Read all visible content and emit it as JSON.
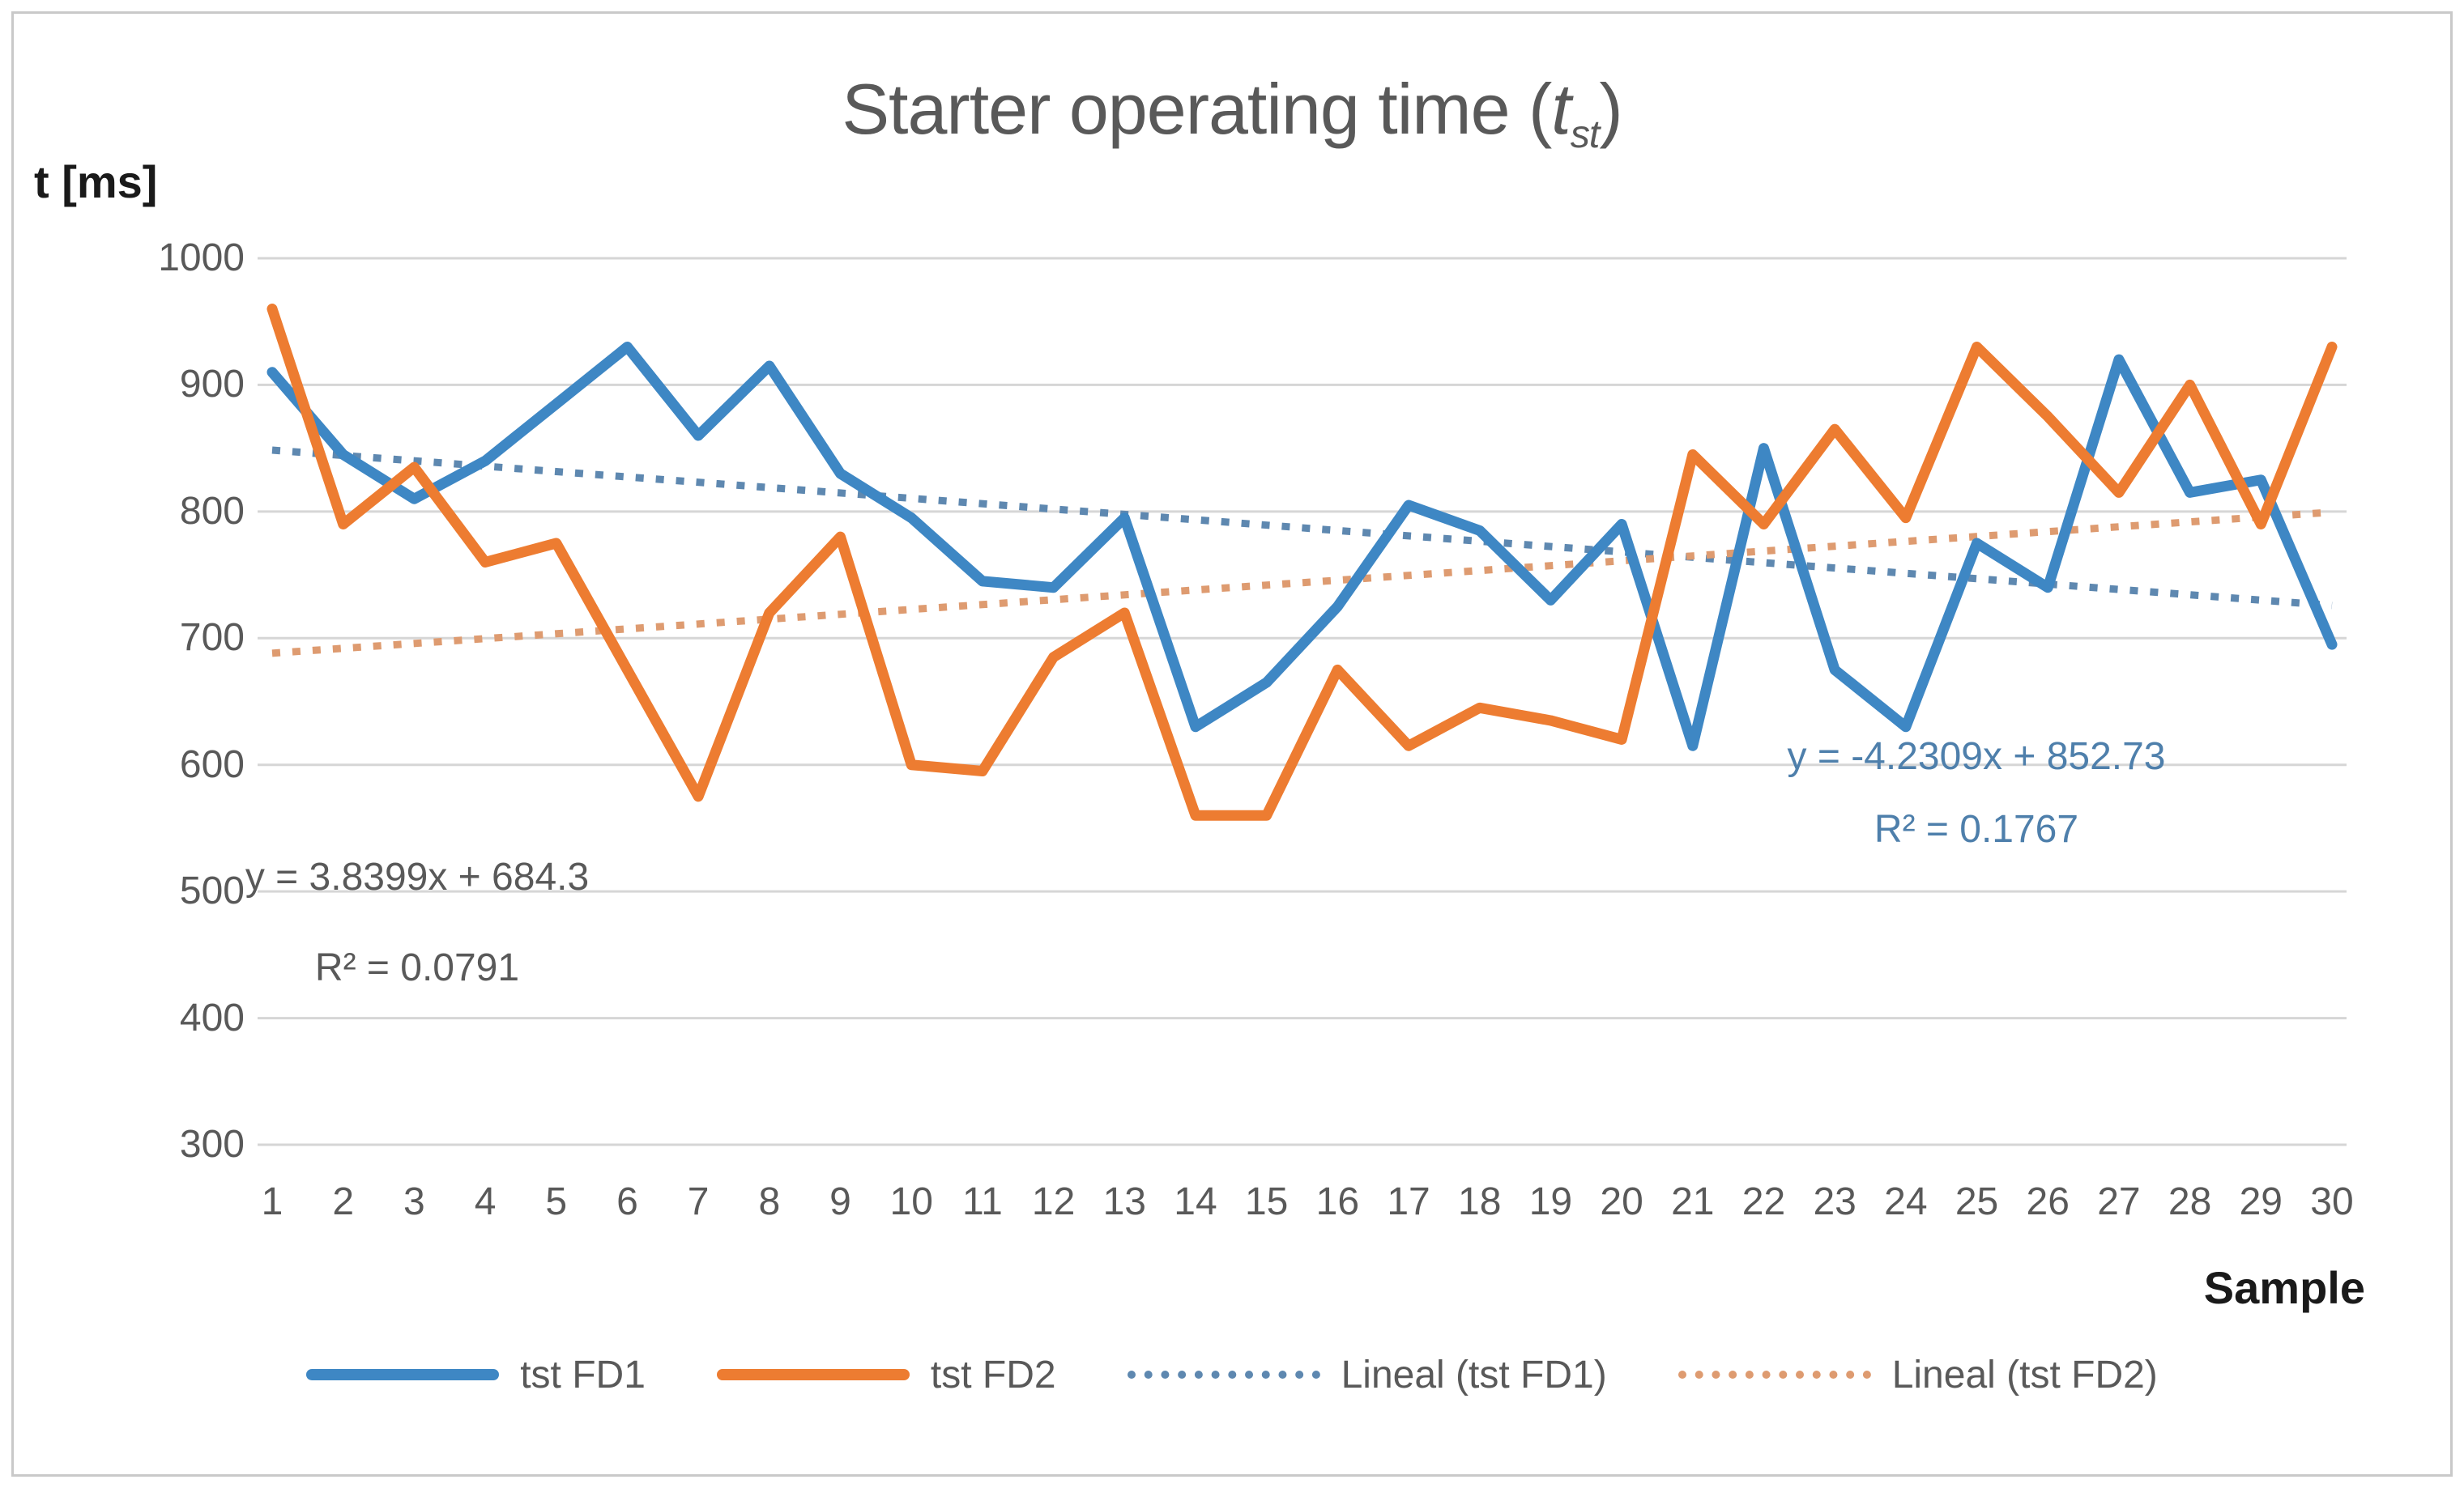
{
  "chart_data": {
    "type": "line",
    "title": {
      "prefix": "Starter operating time (",
      "variable": "t",
      "subscript": "st",
      "suffix": ")"
    },
    "y_axis": {
      "title": "t [ms]",
      "min": 300,
      "max": 1000,
      "ticks": [
        1000,
        900,
        800,
        700,
        600,
        500,
        400,
        300
      ]
    },
    "x_axis": {
      "title": "Sample",
      "ticks": [
        1,
        2,
        3,
        4,
        5,
        6,
        7,
        8,
        9,
        10,
        11,
        12,
        13,
        14,
        15,
        16,
        17,
        18,
        19,
        20,
        21,
        22,
        23,
        24,
        25,
        26,
        27,
        28,
        29,
        30
      ]
    },
    "series": [
      {
        "name": "tst FD1",
        "color": "#3E87C4",
        "values": [
          910,
          845,
          810,
          840,
          885,
          930,
          860,
          915,
          830,
          795,
          745,
          740,
          795,
          630,
          665,
          725,
          805,
          785,
          730,
          790,
          615,
          850,
          675,
          630,
          775,
          740,
          920,
          815,
          825,
          695
        ]
      },
      {
        "name": "tst FD2",
        "color": "#ED7C31",
        "values": [
          960,
          790,
          835,
          760,
          775,
          675,
          575,
          720,
          780,
          600,
          595,
          685,
          720,
          560,
          560,
          675,
          615,
          645,
          635,
          620,
          845,
          790,
          865,
          795,
          930,
          875,
          815,
          900,
          790,
          930
        ]
      }
    ],
    "trendlines": [
      {
        "name": "Lineal (tst FD1)",
        "color": "#5E88B0",
        "slope": -4.2309,
        "intercept": 852.73,
        "equation": "y = -4.2309x + 852.73",
        "r2": "R² = 0.1767",
        "equation_color": "#4E7FAB"
      },
      {
        "name": "Lineal (tst FD2)",
        "color": "#DE9B70",
        "slope": 3.8399,
        "intercept": 684.3,
        "equation": "y = 3.8399x + 684.3",
        "r2": "R² = 0.0791",
        "equation_color": "#595959"
      }
    ],
    "legend": [
      {
        "label": "tst FD1",
        "color": "#3E87C4",
        "dashed": false
      },
      {
        "label": "tst FD2",
        "color": "#ED7C31",
        "dashed": false
      },
      {
        "label": "Lineal (tst FD1)",
        "color": "#5E88B0",
        "dashed": true
      },
      {
        "label": "Lineal (tst FD2)",
        "color": "#DE9B70",
        "dashed": true
      }
    ],
    "gridline_color": "#D6D6D6",
    "legend_position": "bottom",
    "grid": "horizontal"
  }
}
